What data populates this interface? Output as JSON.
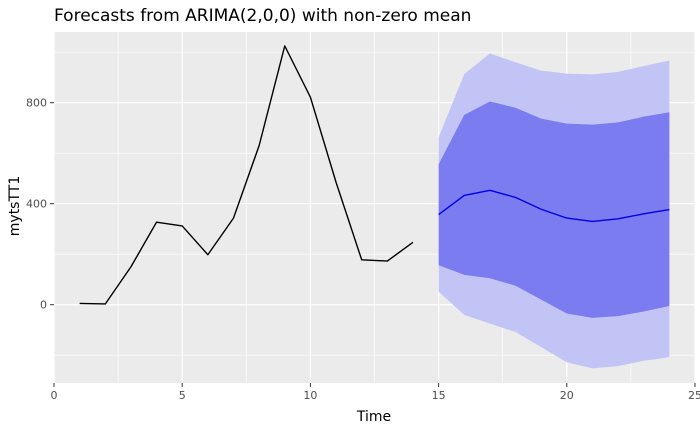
{
  "chart_data": {
    "type": "line",
    "title": "Forecasts from ARIMA(2,0,0) with non-zero mean",
    "xlabel": "Time",
    "ylabel": "mytsTT1",
    "xlim": [
      0,
      25
    ],
    "ylim": [
      -310,
      1080
    ],
    "x_ticks": [
      0,
      5,
      10,
      15,
      20,
      25
    ],
    "y_ticks": [
      0,
      400,
      800
    ],
    "grid": true,
    "legend": "none",
    "observed": {
      "x": [
        1,
        2,
        3,
        4,
        5,
        6,
        7,
        8,
        9,
        10,
        11,
        12,
        13,
        14
      ],
      "y": [
        5,
        3,
        150,
        327,
        312,
        198,
        343,
        630,
        1025,
        822,
        485,
        178,
        173,
        247
      ]
    },
    "forecast": {
      "x": [
        15,
        16,
        17,
        18,
        19,
        20,
        21,
        22,
        23,
        24
      ],
      "mean": [
        357,
        433,
        453,
        425,
        378,
        343,
        330,
        340,
        360,
        377
      ],
      "lo80": [
        157,
        118,
        105,
        75,
        20,
        -35,
        -52,
        -45,
        -27,
        -5
      ],
      "hi80": [
        556,
        752,
        805,
        780,
        737,
        717,
        713,
        722,
        745,
        762
      ],
      "lo95": [
        52,
        -40,
        -75,
        -108,
        -168,
        -228,
        -252,
        -243,
        -222,
        -208
      ],
      "hi95": [
        663,
        913,
        995,
        960,
        927,
        915,
        912,
        922,
        945,
        967
      ]
    },
    "colors": {
      "panel_background": "#ebebeb",
      "grid": "#ffffff",
      "observed_line": "#000000",
      "forecast_line": "#0000e6",
      "band_80": "#7b7cf0",
      "band_95": "#c3c4f6"
    }
  }
}
